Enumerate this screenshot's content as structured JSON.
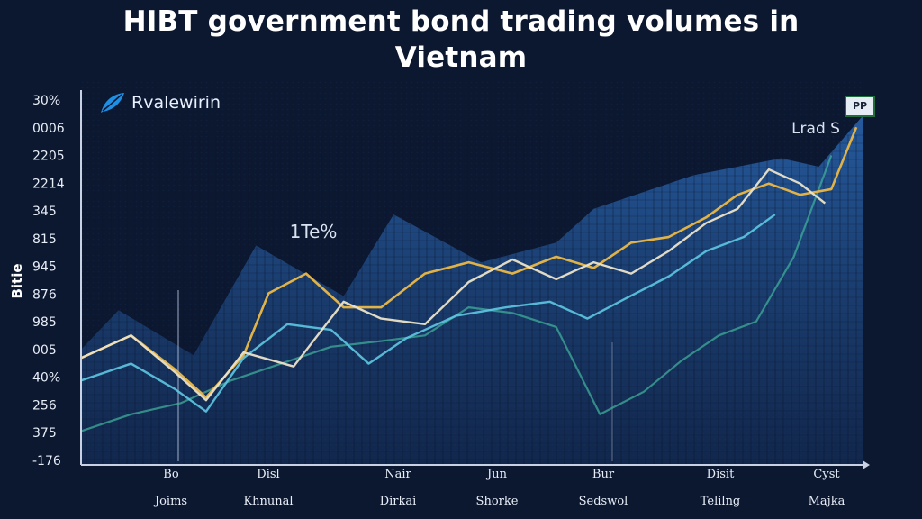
{
  "title_lines": [
    "HIBT government bond trading volumes in",
    "Vietnam"
  ],
  "brand": {
    "name": "Rvalewirin",
    "icon": "leaf-logo-icon"
  },
  "badge": "PP",
  "colors": {
    "background": "#0c1730",
    "area": "#1f4f8f",
    "gold": "#e0b248",
    "cream": "#ece3c8",
    "cyan": "#5ec8e2",
    "teal": "#3fae9a",
    "axis": "#c8d2e4"
  },
  "chart_data": {
    "type": "line",
    "ylabel": "Bitie",
    "y_ticks": [
      "30%",
      "0006",
      "2205",
      "2214",
      "345",
      "815",
      "945",
      "876",
      "985",
      "005",
      "40%",
      "256",
      "375",
      "-176"
    ],
    "x_ticks": [
      {
        "line1": "Bo",
        "line2": "Joims"
      },
      {
        "line1": "Disl",
        "line2": "Khnunal"
      },
      {
        "line1": "Nair",
        "line2": "Dirkai"
      },
      {
        "line1": "Jun",
        "line2": "Shorke"
      },
      {
        "line1": "Bur",
        "line2": "Sedswol"
      },
      {
        "line1": "Disit",
        "line2": "Telilng"
      },
      {
        "line1": "Cyst",
        "line2": "Majka"
      }
    ],
    "annotations": [
      {
        "text": "1Te%",
        "x": 2.55,
        "y": 8.2
      },
      {
        "text": "Lrad S",
        "x": 11.8,
        "y": 12.6
      }
    ],
    "x_range": [
      0,
      12.5
    ],
    "y_range": [
      0,
      13
    ],
    "series": [
      {
        "role": "area",
        "x": [
          0,
          0.6,
          1.8,
          2.8,
          4.2,
          5.0,
          6.4,
          7.6,
          8.2,
          9.8,
          11.2,
          11.8,
          12.5
        ],
        "values": [
          4.1,
          5.5,
          3.9,
          7.8,
          6.0,
          8.9,
          7.2,
          7.9,
          9.1,
          10.3,
          10.9,
          10.6,
          12.4
        ]
      },
      {
        "role": "cream",
        "x": [
          0,
          0.8,
          1.5,
          2.0,
          2.6,
          3.4,
          4.2,
          4.8,
          5.5,
          6.2,
          6.9,
          7.6,
          8.2,
          8.8,
          9.4,
          10.0,
          10.5,
          11.0,
          11.5,
          11.9
        ],
        "values": [
          3.8,
          4.6,
          3.3,
          2.3,
          4.0,
          3.5,
          5.8,
          5.2,
          5.0,
          6.5,
          7.3,
          6.6,
          7.2,
          6.8,
          7.6,
          8.6,
          9.1,
          10.5,
          10.0,
          9.3
        ]
      },
      {
        "role": "gold",
        "x": [
          0,
          0.8,
          1.5,
          2.0,
          2.6,
          3.0,
          3.6,
          4.2,
          4.8,
          5.5,
          6.2,
          6.9,
          7.6,
          8.2,
          8.8,
          9.4,
          10.0,
          10.5,
          11.0,
          11.5,
          12.0,
          12.4
        ],
        "values": [
          3.8,
          4.6,
          3.4,
          2.4,
          3.9,
          6.1,
          6.8,
          5.6,
          5.6,
          6.8,
          7.2,
          6.8,
          7.4,
          7.0,
          7.9,
          8.1,
          8.8,
          9.6,
          10.0,
          9.6,
          9.8,
          12.0
        ]
      },
      {
        "role": "cyan",
        "x": [
          0,
          0.8,
          1.5,
          2.0,
          2.6,
          3.3,
          4.0,
          4.6,
          5.2,
          6.0,
          6.8,
          7.5,
          8.1,
          8.7,
          9.4,
          10.0,
          10.6,
          11.1
        ],
        "values": [
          3.0,
          3.6,
          2.7,
          1.9,
          3.8,
          5.0,
          4.8,
          3.6,
          4.5,
          5.3,
          5.6,
          5.8,
          5.2,
          5.9,
          6.7,
          7.6,
          8.1,
          8.9
        ]
      },
      {
        "role": "teal",
        "x": [
          0,
          0.8,
          1.6,
          2.4,
          3.2,
          4.0,
          4.8,
          5.5,
          6.2,
          6.9,
          7.6,
          8.3,
          9.0,
          9.6,
          10.2,
          10.8,
          11.4,
          12.0
        ],
        "values": [
          1.2,
          1.8,
          2.2,
          3.0,
          3.6,
          4.2,
          4.4,
          4.6,
          5.6,
          5.4,
          4.9,
          1.8,
          2.6,
          3.7,
          4.6,
          5.1,
          7.4,
          11.0
        ]
      }
    ]
  }
}
